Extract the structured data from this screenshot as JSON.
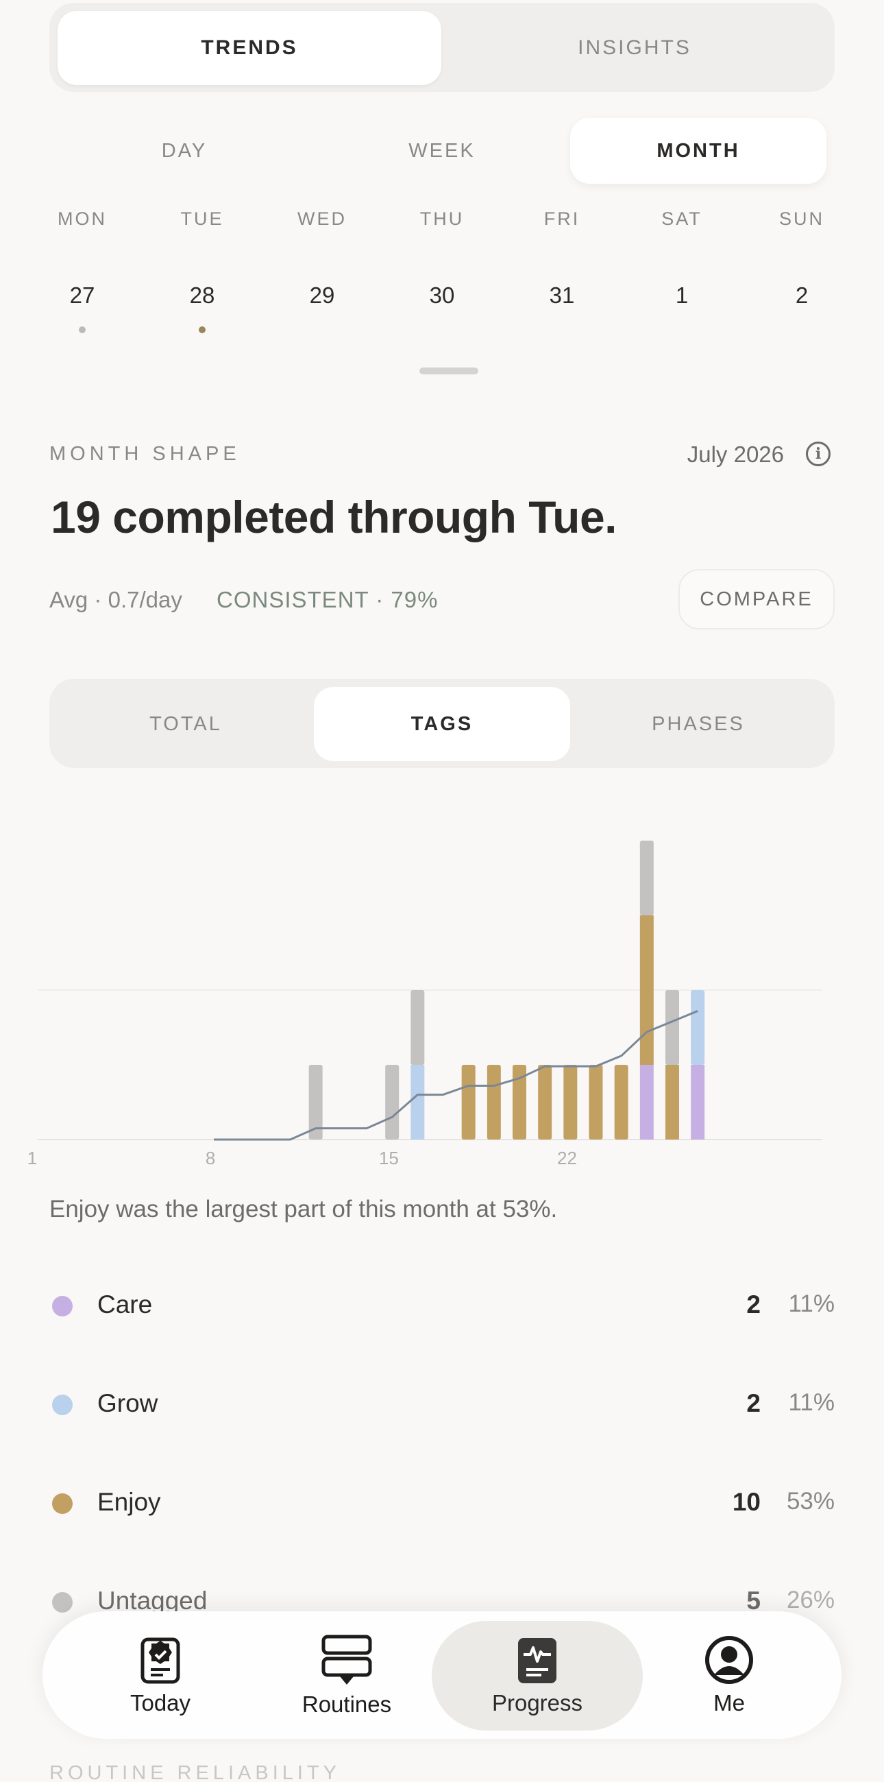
{
  "top_tabs": [
    {
      "label": "TRENDS",
      "active": true
    },
    {
      "label": "INSIGHTS",
      "active": false
    }
  ],
  "range_tabs": [
    {
      "label": "DAY",
      "active": false
    },
    {
      "label": "WEEK",
      "active": false
    },
    {
      "label": "MONTH",
      "active": true
    }
  ],
  "week": [
    {
      "day": "MON",
      "date": "27",
      "dot": "#bcbab7"
    },
    {
      "day": "TUE",
      "date": "28",
      "dot": "#9a8658"
    },
    {
      "day": "WED",
      "date": "29",
      "dot": ""
    },
    {
      "day": "THU",
      "date": "30",
      "dot": ""
    },
    {
      "day": "FRI",
      "date": "31",
      "dot": ""
    },
    {
      "day": "SAT",
      "date": "1",
      "dot": ""
    },
    {
      "day": "SUN",
      "date": "2",
      "dot": ""
    }
  ],
  "section": {
    "label": "MONTH SHAPE",
    "month": "July 2026",
    "headline": "19 completed through Tue.",
    "avg": "Avg · 0.7/day",
    "consistency": "CONSISTENT · 79%",
    "compare_label": "COMPARE"
  },
  "view_tabs": [
    {
      "label": "TOTAL",
      "active": false
    },
    {
      "label": "TAGS",
      "active": true
    },
    {
      "label": "PHASES",
      "active": false
    }
  ],
  "colors": {
    "care": "#c6b0e3",
    "grow": "#b9d1ec",
    "enjoy": "#c2a062",
    "untagged": "#c3c2c0",
    "line": "#7a8896"
  },
  "chart_data": {
    "type": "bar",
    "stacked": true,
    "x": [
      1,
      2,
      3,
      4,
      5,
      6,
      7,
      8,
      9,
      10,
      11,
      12,
      13,
      14,
      15,
      16,
      17,
      18,
      19,
      20,
      21,
      22,
      23,
      24,
      25,
      26,
      27,
      28,
      29,
      30,
      31
    ],
    "x_ticks": [
      "1",
      "8",
      "15",
      "22"
    ],
    "series": [
      {
        "name": "Care",
        "values": [
          0,
          0,
          0,
          0,
          0,
          0,
          0,
          0,
          0,
          0,
          0,
          0,
          0,
          0,
          0,
          0,
          0,
          0,
          0,
          0,
          0,
          0,
          0,
          1,
          0,
          1,
          0,
          0,
          0,
          0,
          0
        ]
      },
      {
        "name": "Grow",
        "values": [
          0,
          0,
          0,
          0,
          0,
          0,
          0,
          0,
          0,
          0,
          0,
          0,
          0,
          0,
          1,
          0,
          0,
          0,
          0,
          0,
          0,
          0,
          0,
          0,
          0,
          1,
          0,
          0,
          0,
          0,
          0
        ]
      },
      {
        "name": "Enjoy",
        "values": [
          0,
          0,
          0,
          0,
          0,
          0,
          0,
          0,
          0,
          0,
          0,
          0,
          0,
          0,
          0,
          0,
          1,
          1,
          1,
          1,
          1,
          1,
          1,
          2,
          1,
          0,
          0,
          0,
          0,
          0,
          0
        ]
      },
      {
        "name": "Untagged",
        "values": [
          0,
          0,
          0,
          0,
          0,
          0,
          0,
          0,
          0,
          0,
          1,
          0,
          0,
          1,
          1,
          0,
          0,
          0,
          0,
          0,
          0,
          0,
          0,
          1,
          1,
          0,
          0,
          0,
          0,
          0,
          0
        ]
      }
    ],
    "trend_line": [
      null,
      null,
      null,
      null,
      null,
      null,
      0,
      0,
      0,
      0,
      0.15,
      0.15,
      0.15,
      0.3,
      0.6,
      0.6,
      0.72,
      0.72,
      0.82,
      0.98,
      0.98,
      0.98,
      1.12,
      1.44,
      1.58,
      1.72,
      null,
      null,
      null,
      null,
      null
    ],
    "ylim": [
      0,
      4
    ],
    "grid": "horizontal"
  },
  "summary": "Enjoy was the largest part of this month at 53%.",
  "legend": [
    {
      "name": "Care",
      "count": "2",
      "pct": "11%",
      "color": "#c6b0e3"
    },
    {
      "name": "Grow",
      "count": "2",
      "pct": "11%",
      "color": "#b9d1ec"
    },
    {
      "name": "Enjoy",
      "count": "10",
      "pct": "53%",
      "color": "#c2a062"
    },
    {
      "name": "Untagged",
      "count": "5",
      "pct": "26%",
      "color": "#c3c2c0"
    }
  ],
  "next_section_label": "ROUTINE RELIABILITY",
  "bottom_nav": [
    {
      "label": "Today",
      "icon": "today-icon",
      "active": false
    },
    {
      "label": "Routines",
      "icon": "routines-icon",
      "active": false
    },
    {
      "label": "Progress",
      "icon": "progress-icon",
      "active": true
    },
    {
      "label": "Me",
      "icon": "profile-icon",
      "active": false
    }
  ]
}
